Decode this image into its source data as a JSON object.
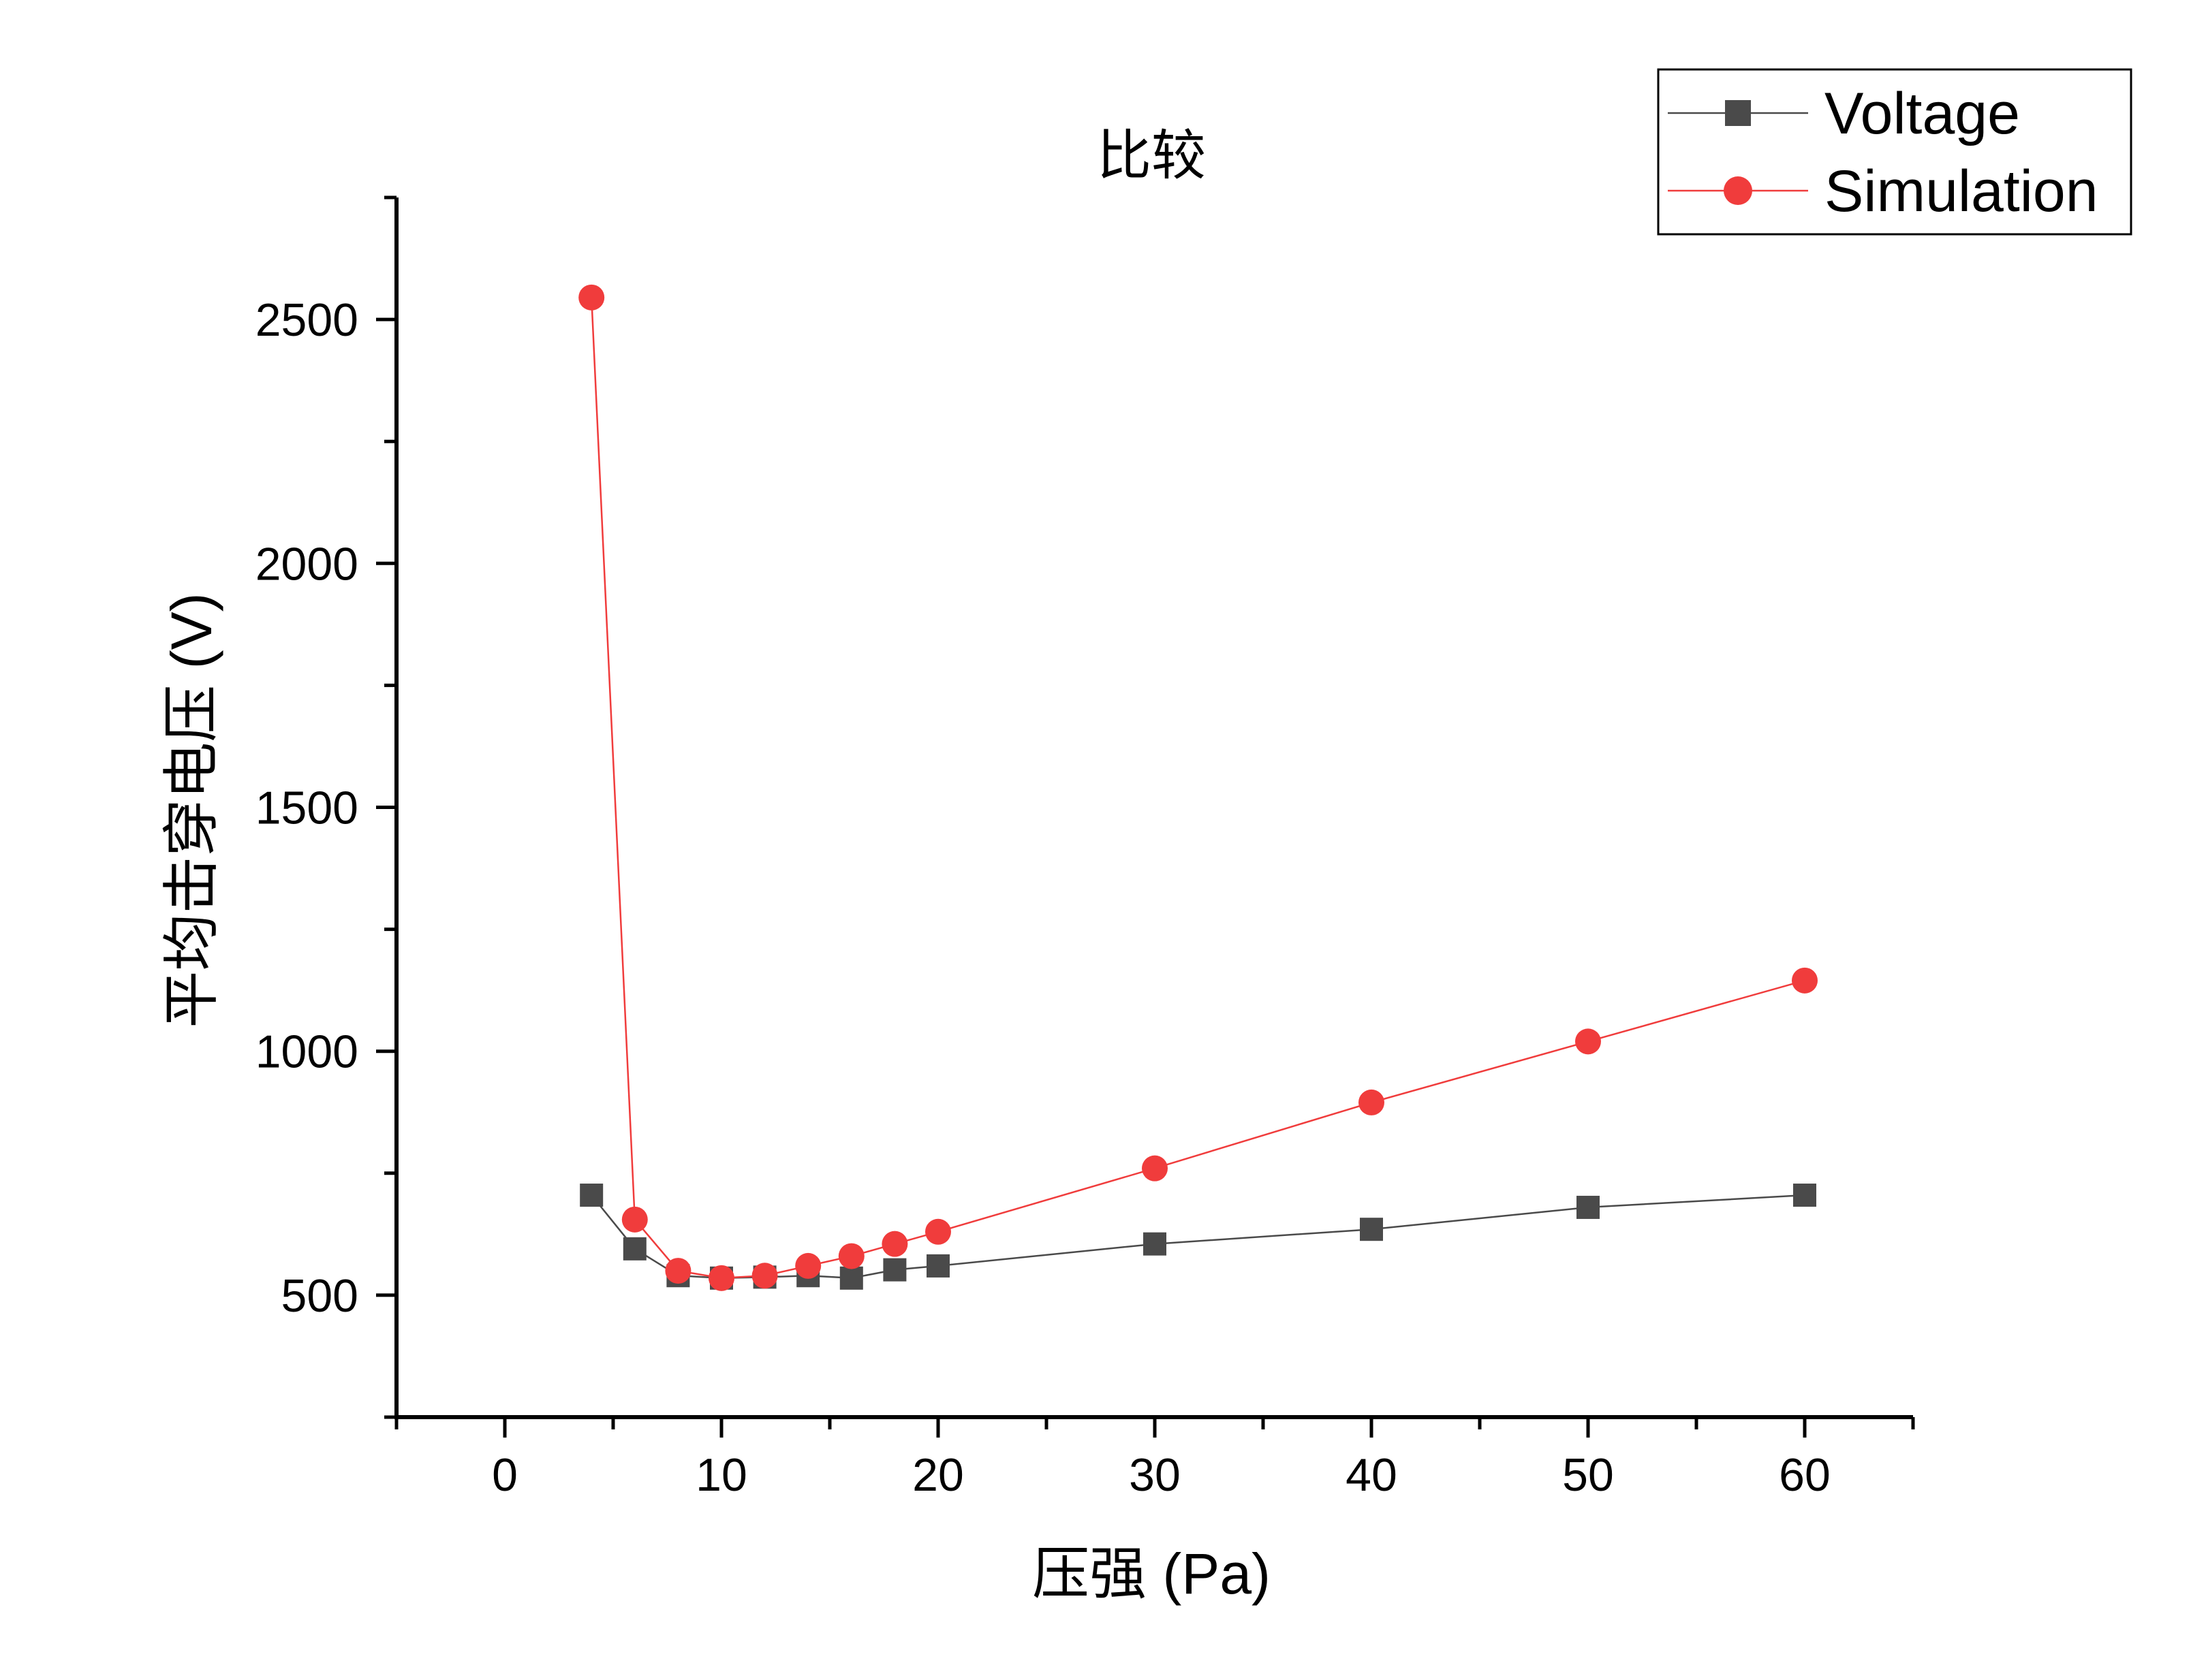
{
  "chart_data": {
    "type": "line",
    "title": "比较",
    "xlabel": "压强 (Pa)",
    "ylabel": "平均击穿电压 (V)",
    "xlim": [
      -5,
      65
    ],
    "ylim": [
      250,
      2750
    ],
    "x_ticks": [
      "0",
      "10",
      "20",
      "30",
      "40",
      "50",
      "60"
    ],
    "y_ticks": [
      "500",
      "1000",
      "1500",
      "2000",
      "2500"
    ],
    "legend_position": "top-right",
    "grid": false,
    "series": [
      {
        "name": "Voltage",
        "color": "#4a4a4a",
        "marker": "square",
        "x": [
          4,
          6,
          8,
          10,
          12,
          14,
          16,
          18,
          20,
          30,
          40,
          50,
          60
        ],
        "y": [
          705,
          595,
          540,
          535,
          537,
          540,
          535,
          552,
          560,
          605,
          635,
          680,
          705
        ]
      },
      {
        "name": "Simulation",
        "color": "#f03c3c",
        "marker": "circle",
        "x": [
          4,
          6,
          8,
          10,
          12,
          14,
          16,
          18,
          20,
          30,
          40,
          50,
          60
        ],
        "y": [
          2545,
          655,
          550,
          535,
          540,
          560,
          580,
          605,
          630,
          760,
          895,
          1020,
          1145
        ]
      }
    ]
  }
}
